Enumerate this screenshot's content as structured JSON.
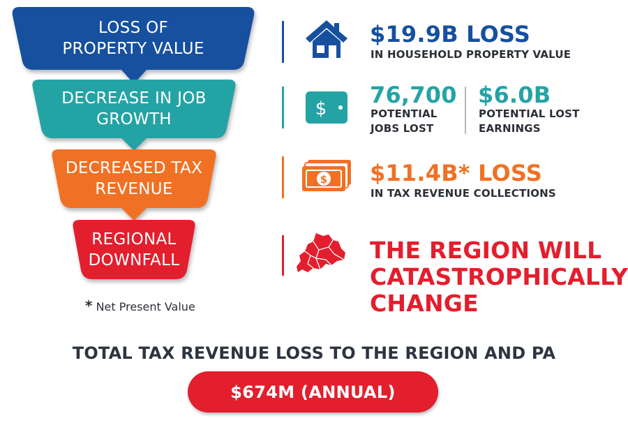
{
  "colors": {
    "blue": "#16509f",
    "teal": "#24a3a5",
    "orange": "#f07124",
    "red": "#e31e2d",
    "dark_text": "#2b2f36"
  },
  "funnel": [
    {
      "label": "LOSS OF\nPROPERTY VALUE",
      "color": "#16509f"
    },
    {
      "label": "DECREASE IN JOB\nGROWTH",
      "color": "#24a3a5"
    },
    {
      "label": "DECREASED TAX\nREVENUE",
      "color": "#f07124"
    },
    {
      "label": "REGIONAL\nDOWNFALL",
      "color": "#e31e2d"
    }
  ],
  "footnote": {
    "star": "*",
    "text": "Net Present Value"
  },
  "impacts": {
    "property": {
      "icon": "house-icon",
      "value": "$19.9B LOSS",
      "caption": "IN HOUSEHOLD PROPERTY VALUE"
    },
    "jobs": {
      "icon": "wallet-icon",
      "value": "76,700",
      "caption": "POTENTIAL\nJOBS LOST"
    },
    "earnings": {
      "value": "$6.0B",
      "caption": "POTENTIAL LOST\nEARNINGS"
    },
    "tax": {
      "icon": "cash-stack-icon",
      "value": "$11.4B* LOSS",
      "caption": "IN TAX REVENUE COLLECTIONS"
    },
    "region": {
      "icon": "region-map-icon",
      "value": "THE REGION WILL\nCATASTROPHICALLY\nCHANGE"
    }
  },
  "total": {
    "label": "TOTAL TAX REVENUE LOSS TO THE REGION AND PA",
    "value": "$674M (ANNUAL)"
  }
}
